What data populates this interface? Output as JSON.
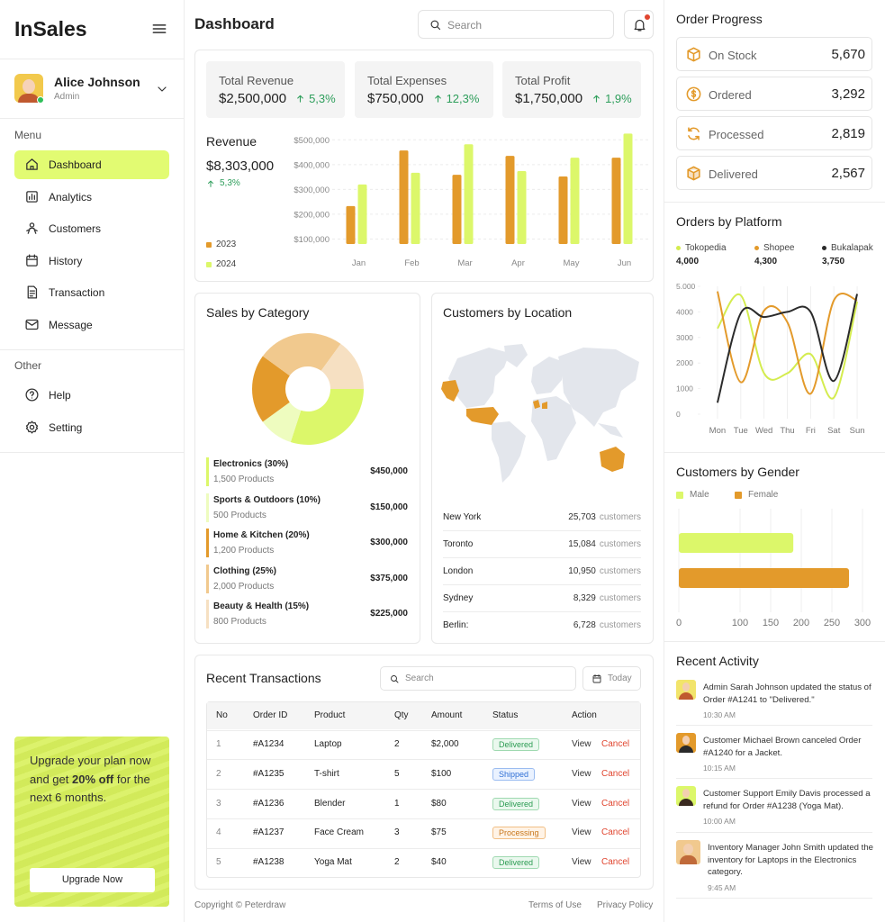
{
  "sidebar": {
    "brand": "InSales",
    "user": {
      "name": "Alice Johnson",
      "role": "Admin"
    },
    "menu_label": "Menu",
    "menu": [
      "Dashboard",
      "Analytics",
      "Customers",
      "History",
      "Transaction",
      "Message"
    ],
    "other_label": "Other",
    "other": [
      "Help",
      "Setting"
    ],
    "upgrade": {
      "text_before": "Upgrade your plan now and get ",
      "highlight": "20% off",
      "text_after": " for the next 6 months.",
      "button": "Upgrade Now"
    }
  },
  "header": {
    "title": "Dashboard",
    "search_placeholder": "Search"
  },
  "kpis": [
    {
      "label": "Total Revenue",
      "value": "$2,500,000",
      "change": "5,3%"
    },
    {
      "label": "Total Expenses",
      "value": "$750,000",
      "change": "12,3%"
    },
    {
      "label": "Total Profit",
      "value": "$1,750,000",
      "change": "1,9%"
    }
  ],
  "revenue": {
    "title": "Revenue",
    "total": "$8,303,000",
    "change": "5,3%",
    "chart": {
      "type": "bar",
      "categories": [
        "Jan",
        "Feb",
        "Mar",
        "Apr",
        "May",
        "Jun"
      ],
      "series": [
        {
          "name": "2023",
          "color": "#e39a2b",
          "values": [
            233000,
            457000,
            359000,
            435000,
            352000,
            428000
          ]
        },
        {
          "name": "2024",
          "color": "#dcf76a",
          "values": [
            320000,
            367000,
            482000,
            374000,
            428000,
            525000
          ]
        }
      ],
      "ylim": [
        80000,
        530000
      ],
      "yticks": [
        {
          "value": 100000,
          "label": "$100,000"
        },
        {
          "value": 200000,
          "label": "$200,000"
        },
        {
          "value": 300000,
          "label": "$300,000"
        },
        {
          "value": 400000,
          "label": "$400,000"
        },
        {
          "value": 500000,
          "label": "$500,000"
        }
      ],
      "grid": true
    }
  },
  "sales_by_category": {
    "title": "Sales by Category",
    "chart": {
      "type": "pie",
      "donut": true,
      "categories": [
        "Electronics (30%)",
        "Sports & Outdoors (10%)",
        "Home & Kitchen (20%)",
        "Clothing (25%)",
        "Beauty & Health (15%)"
      ],
      "values": [
        30,
        10,
        20,
        25,
        15
      ],
      "colors": [
        "#dcf76a",
        "#eefcbf",
        "#e39a2b",
        "#f1c98e",
        "#f6e0c2"
      ]
    },
    "products": [
      "1,500 Products",
      "500 Products",
      "1,200 Products",
      "2,000 Products",
      "800 Products"
    ],
    "amounts": [
      "$450,000",
      "$150,000",
      "$300,000",
      "$375,000",
      "$225,000"
    ]
  },
  "customers_by_location": {
    "title": "Customers by Location",
    "unit": "customers",
    "cities": [
      {
        "name": "New York",
        "count": "25,703"
      },
      {
        "name": "Toronto",
        "count": "15,084"
      },
      {
        "name": "London",
        "count": "10,950"
      },
      {
        "name": "Sydney",
        "count": "8,329"
      },
      {
        "name": "Berlin:",
        "count": "6,728"
      }
    ]
  },
  "transactions": {
    "title": "Recent Transactions",
    "search_placeholder": "Search",
    "date_filter": "Today",
    "columns": [
      "No",
      "Order ID",
      "Product",
      "Qty",
      "Amount",
      "Status",
      "Action"
    ],
    "rows": [
      [
        "1",
        "#A1234",
        "Laptop",
        "2",
        "$2,000",
        "Delivered"
      ],
      [
        "2",
        "#A1235",
        "T-shirt",
        "5",
        "$100",
        "Shipped"
      ],
      [
        "3",
        "#A1236",
        "Blender",
        "1",
        "$80",
        "Delivered"
      ],
      [
        "4",
        "#A1237",
        "Face Cream",
        "3",
        "$75",
        "Processing"
      ],
      [
        "5",
        "#A1238",
        "Yoga Mat",
        "2",
        "$40",
        "Delivered"
      ]
    ],
    "status_colors": [
      "green",
      "blue",
      "green",
      "orange",
      "green"
    ],
    "actions": [
      "View",
      "Cancel"
    ]
  },
  "footer": {
    "copyright": "Copyright © Peterdraw",
    "links": [
      "Terms of Use",
      "Privacy Policy"
    ]
  },
  "order_progress": {
    "title": "Order Progress",
    "items": [
      {
        "label": "On Stock",
        "value": "5,670"
      },
      {
        "label": "Ordered",
        "value": "3,292"
      },
      {
        "label": "Processed",
        "value": "2,819"
      },
      {
        "label": "Delivered",
        "value": "2,567"
      }
    ]
  },
  "orders_by_platform": {
    "title": "Orders by Platform",
    "totals": [
      "4,000",
      "4,300",
      "3,750"
    ],
    "chart": {
      "type": "line",
      "categories": [
        "Mon",
        "Tue",
        "Wed",
        "Thu",
        "Fri",
        "Sat",
        "Sun"
      ],
      "series": [
        {
          "name": "Tokopedia",
          "color": "#d4ec4f",
          "values": [
            3350,
            4650,
            1600,
            1600,
            2350,
            650,
            4400
          ]
        },
        {
          "name": "Shopee",
          "color": "#e39a2b",
          "values": [
            4800,
            1250,
            4050,
            3600,
            800,
            4450,
            4450
          ]
        },
        {
          "name": "Bukalapak",
          "color": "#2b2b2b",
          "values": [
            450,
            3950,
            3800,
            4000,
            4000,
            1300,
            4700
          ]
        }
      ],
      "ylim": [
        0,
        5000
      ],
      "yticks": [
        0,
        1000,
        2000,
        3000,
        4000,
        {
          "value": 5000,
          "label": "5.000"
        }
      ],
      "grid": true
    }
  },
  "customers_by_gender": {
    "title": "Customers by Gender",
    "chart": {
      "type": "bar",
      "series": [
        {
          "name": "Male",
          "color": "#dcf76a",
          "values": [
            187
          ]
        },
        {
          "name": "Female",
          "color": "#e39a2b",
          "values": [
            278
          ]
        }
      ],
      "xlim": [
        0,
        300
      ],
      "xticks": [
        0,
        100,
        150,
        200,
        250,
        300
      ],
      "grid": true
    }
  },
  "recent_activity": {
    "title": "Recent Activity",
    "items": [
      {
        "text": "Admin Sarah Johnson updated the status of Order #A1241 to \"Delivered.\"",
        "time": "10:30 AM"
      },
      {
        "text": "Customer Michael Brown canceled Order #A1240 for a Jacket.",
        "time": "10:15 AM"
      },
      {
        "text": "Customer Support Emily Davis processed a refund for Order #A1238 (Yoga Mat).",
        "time": "10:00 AM"
      },
      {
        "text": "Inventory Manager John Smith updated the inventory for Laptops in the Electronics category.",
        "time": "9:45 AM"
      }
    ]
  }
}
